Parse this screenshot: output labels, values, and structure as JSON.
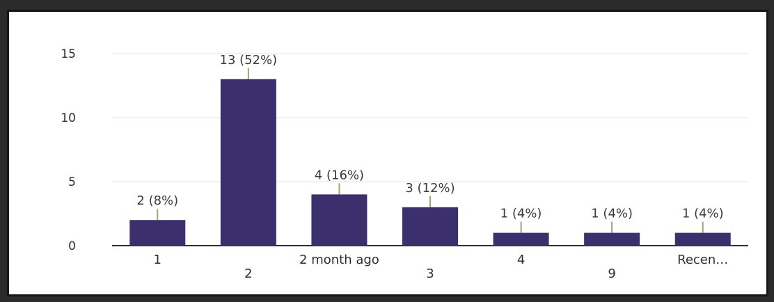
{
  "chart_data": {
    "type": "bar",
    "categories": [
      "1",
      "2",
      "2 month ago",
      "3",
      "4",
      "9",
      "Recen…"
    ],
    "values": [
      2,
      13,
      4,
      3,
      1,
      1,
      1
    ],
    "data_labels": [
      "2 (8%)",
      "13 (52%)",
      "4 (16%)",
      "3 (12%)",
      "1 (4%)",
      "1 (4%)",
      "1 (4%)"
    ],
    "yticks": [
      "0",
      "5",
      "10",
      "15"
    ],
    "ylim": [
      0,
      15
    ],
    "title": "",
    "xlabel": "",
    "ylabel": "",
    "grid": true,
    "colors": {
      "bar": "#3b2f6e",
      "accent": "#e0405a",
      "label": "#3a3a44",
      "axis": "#2d2d3a",
      "grid": "#e6e6e6"
    }
  }
}
